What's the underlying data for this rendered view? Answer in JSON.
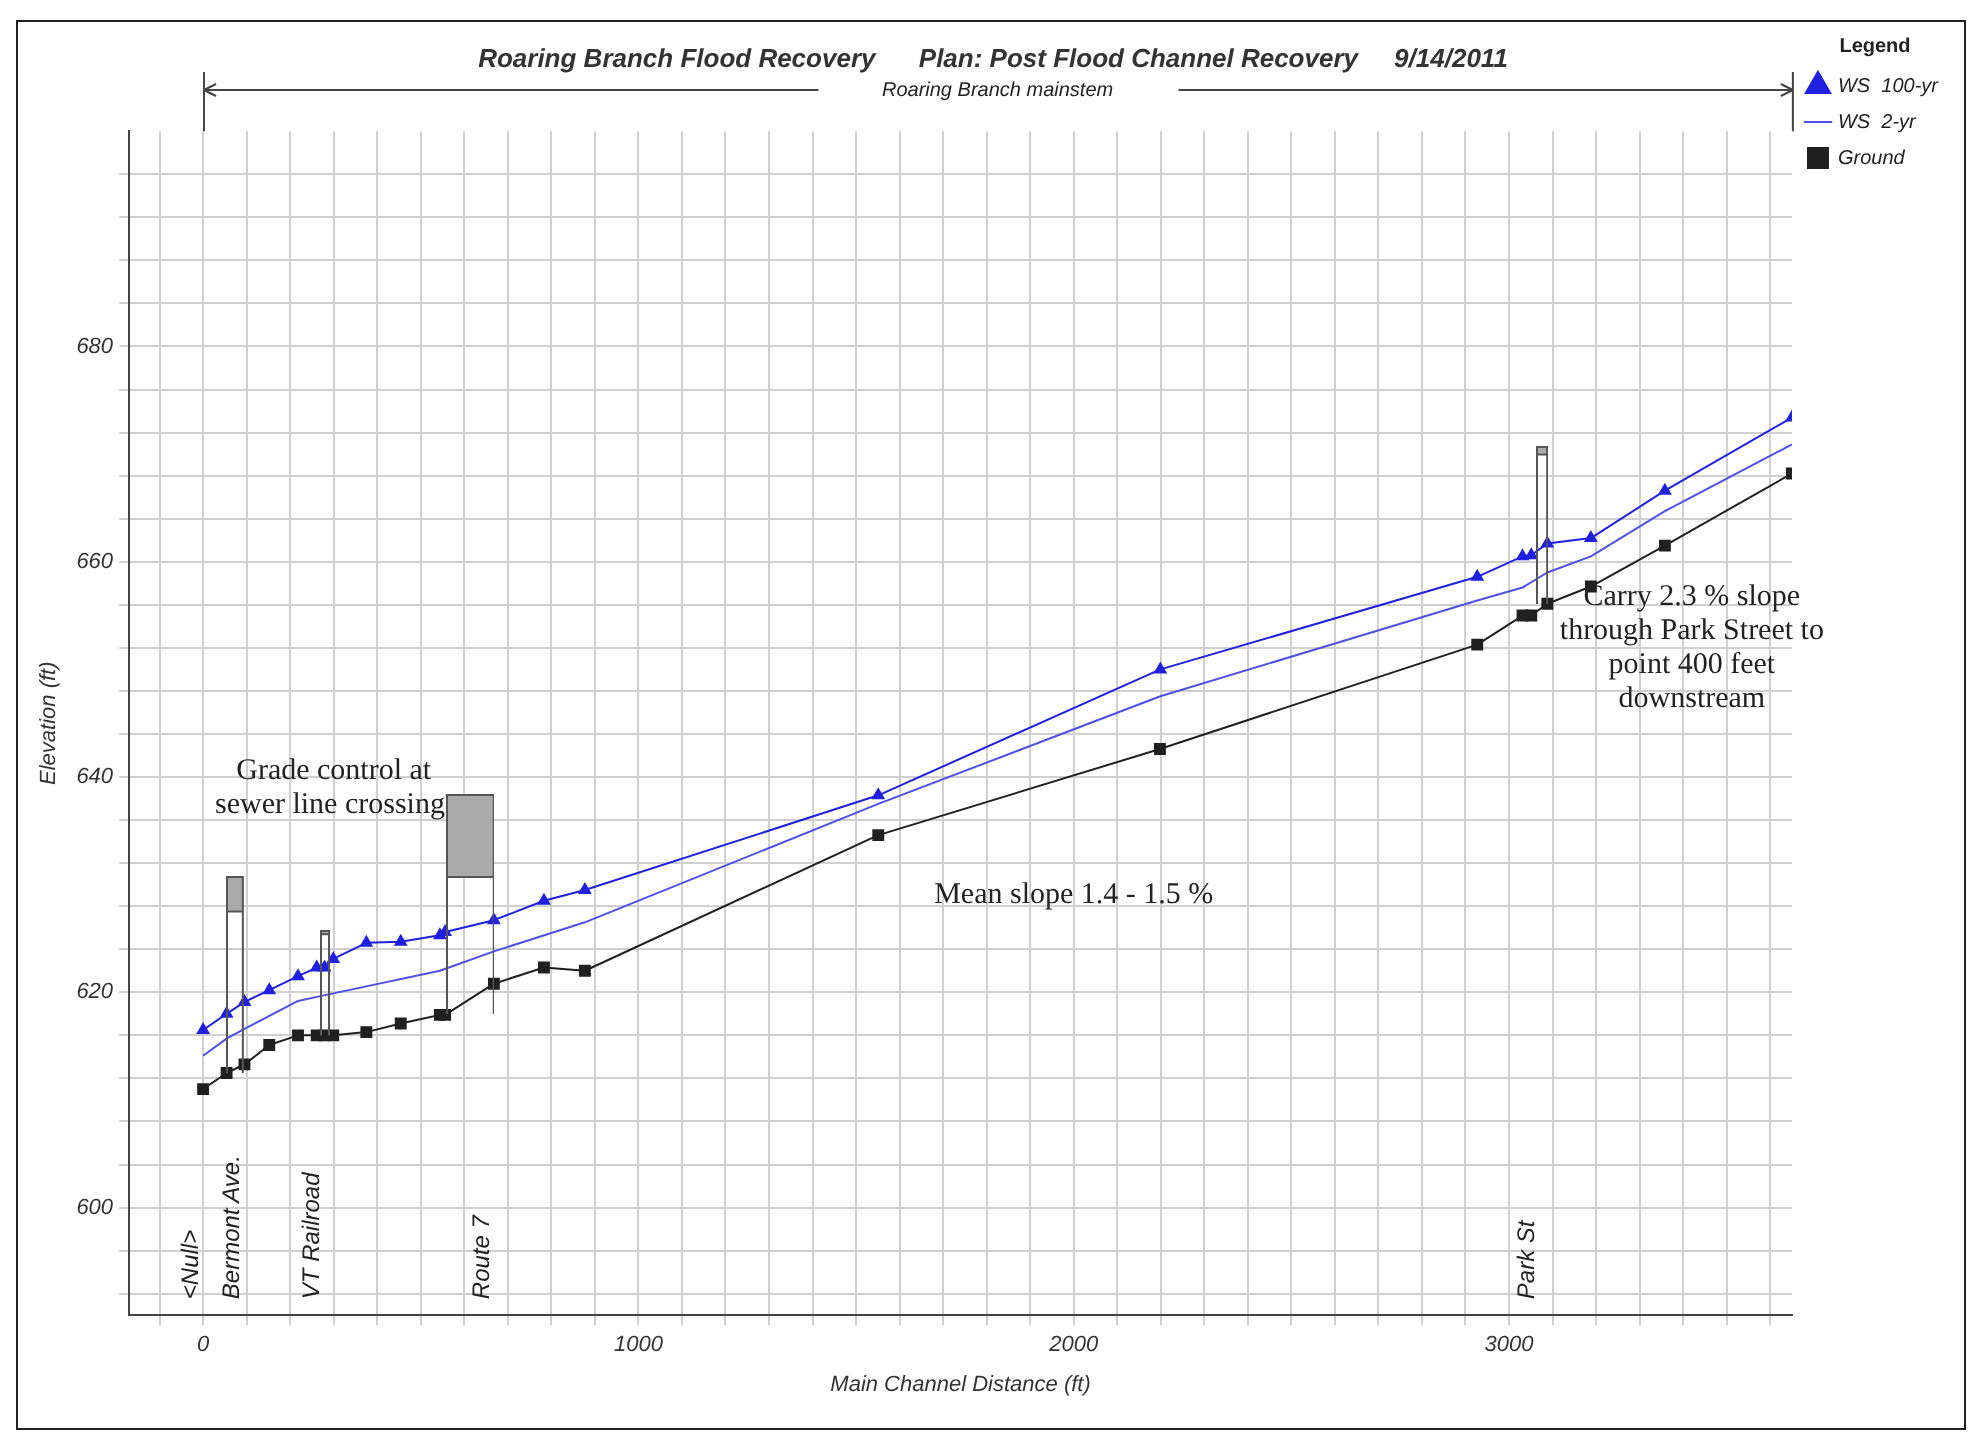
{
  "chart_data": {
    "type": "line",
    "title": "Roaring Branch Flood Recovery      Plan: Post Flood Channel Recovery     9/14/2011",
    "xlabel": "Main Channel Distance (ft)",
    "ylabel": "Elevation (ft)",
    "legend_title": "Legend",
    "legend": "top right",
    "grid": true,
    "xlim": [
      -170,
      3650
    ],
    "ylim": [
      590,
      700
    ],
    "xticks": [
      {
        "value": -100,
        "label": null
      },
      0,
      {
        "value": 100,
        "label": null
      },
      {
        "value": 200,
        "label": null
      },
      {
        "value": 300,
        "label": null
      },
      {
        "value": 400,
        "label": null
      },
      {
        "value": 500,
        "label": null
      },
      {
        "value": 600,
        "label": null
      },
      {
        "value": 700,
        "label": null
      },
      {
        "value": 800,
        "label": null
      },
      {
        "value": 900,
        "label": null
      },
      1000,
      {
        "value": 1100,
        "label": null
      },
      {
        "value": 1200,
        "label": null
      },
      {
        "value": 1300,
        "label": null
      },
      {
        "value": 1400,
        "label": null
      },
      {
        "value": 1500,
        "label": null
      },
      {
        "value": 1600,
        "label": null
      },
      {
        "value": 1700,
        "label": null
      },
      {
        "value": 1800,
        "label": null
      },
      {
        "value": 1900,
        "label": null
      },
      2000,
      {
        "value": 2100,
        "label": null
      },
      {
        "value": 2200,
        "label": null
      },
      {
        "value": 2300,
        "label": null
      },
      {
        "value": 2400,
        "label": null
      },
      {
        "value": 2500,
        "label": null
      },
      {
        "value": 2600,
        "label": null
      },
      {
        "value": 2700,
        "label": null
      },
      {
        "value": 2800,
        "label": null
      },
      {
        "value": 2900,
        "label": null
      },
      3000,
      {
        "value": 3100,
        "label": null
      },
      {
        "value": 3200,
        "label": null
      },
      {
        "value": 3300,
        "label": null
      },
      {
        "value": 3400,
        "label": null
      },
      {
        "value": 3500,
        "label": null
      },
      {
        "value": 3600,
        "label": null
      }
    ],
    "yticks": [
      {
        "value": 592,
        "label": null
      },
      {
        "value": 596,
        "label": null
      },
      600,
      {
        "value": 604,
        "label": null
      },
      {
        "value": 608,
        "label": null
      },
      {
        "value": 612,
        "label": null
      },
      {
        "value": 616,
        "label": null
      },
      620,
      {
        "value": 624,
        "label": null
      },
      {
        "value": 628,
        "label": null
      },
      {
        "value": 632,
        "label": null
      },
      {
        "value": 636,
        "label": null
      },
      640,
      {
        "value": 644,
        "label": null
      },
      {
        "value": 648,
        "label": null
      },
      {
        "value": 652,
        "label": null
      },
      {
        "value": 656,
        "label": null
      },
      660,
      {
        "value": 664,
        "label": null
      },
      {
        "value": 668,
        "label": null
      },
      {
        "value": 672,
        "label": null
      },
      {
        "value": 676,
        "label": null
      },
      680,
      {
        "value": 684,
        "label": null
      },
      {
        "value": 688,
        "label": null
      },
      {
        "value": 692,
        "label": null
      },
      {
        "value": 696,
        "label": null
      }
    ],
    "series": [
      {
        "name": "WS  100-yr",
        "color": "#2020e0",
        "marker": "triangle",
        "x": [
          0,
          54,
          95,
          152,
          218,
          261,
          279,
          299,
          375,
          454,
          544,
          556,
          668,
          783,
          877,
          1551,
          2199,
          2927,
          3031,
          3051,
          3088,
          3188,
          3358,
          3650
        ],
        "values": [
          616.5,
          618,
          619.1,
          620.2,
          621.5,
          622.3,
          622.3,
          623.1,
          624.6,
          624.7,
          625.3,
          625.6,
          626.7,
          628.5,
          629.5,
          638.3,
          650.0,
          658.6,
          660.5,
          660.6,
          661.7,
          662.2,
          666.6,
          673.4
        ]
      },
      {
        "name": "WS  2-yr",
        "color": "#5050e8",
        "marker": "none",
        "x": [
          0,
          54,
          95,
          218,
          299,
          544,
          668,
          877,
          1551,
          2199,
          2927,
          3031,
          3088,
          3188,
          3358,
          3650
        ],
        "values": [
          614.1,
          615.7,
          616.6,
          619.2,
          619.9,
          622.0,
          623.8,
          626.5,
          637.5,
          647.5,
          656.4,
          657.6,
          659.0,
          660.5,
          664.7,
          670.9
        ]
      },
      {
        "name": "Ground",
        "color": "#202020",
        "marker": "square",
        "x": [
          0,
          54,
          95,
          152,
          218,
          261,
          279,
          299,
          375,
          454,
          544,
          556,
          668,
          783,
          877,
          1551,
          2198,
          2927,
          3031,
          3051,
          3088,
          3188,
          3358,
          3650
        ],
        "values": [
          611.0,
          612.5,
          613.3,
          615.1,
          616.0,
          616.0,
          616.0,
          616.0,
          616.3,
          617.1,
          617.9,
          617.9,
          620.8,
          622.3,
          622.0,
          634.6,
          642.6,
          652.3,
          655.0,
          655.0,
          656.1,
          657.7,
          661.5,
          668.2
        ]
      }
    ],
    "annotations": [
      "Roaring Branch mainstem",
      "Grade control at\nsewer line crossing.",
      "Mean slope 1.4 - 1.5 %",
      "Carry 2.3 % slope\nthrough Park Street to\npoint 400 feet\ndownstream",
      "<Null>",
      "Bermont Ave.",
      "VT Railroad",
      "Route 7",
      "Park St"
    ]
  }
}
